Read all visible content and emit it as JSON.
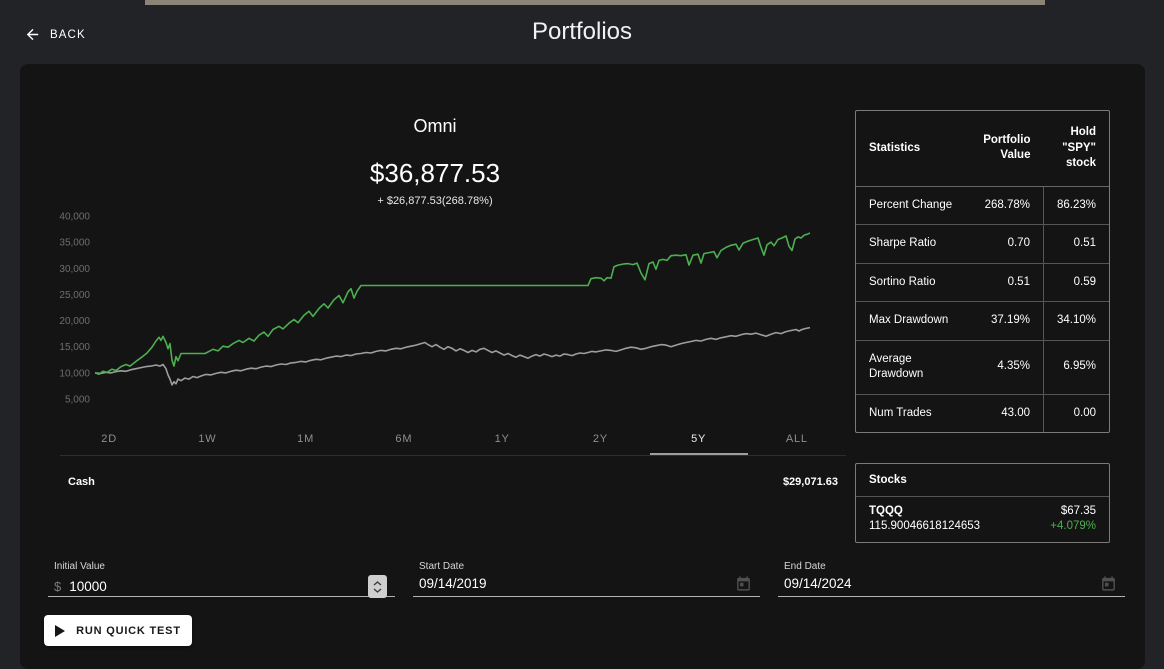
{
  "header": {
    "back_label": "BACK",
    "title": "Portfolios"
  },
  "portfolio": {
    "name": "Omni",
    "value": "$36,877.53",
    "change": "+ $26,877.53(268.78%)"
  },
  "chart_data": {
    "type": "line",
    "title": "Omni portfolio value vs holding SPY, 5Y backtest",
    "xlabel": "",
    "ylabel": "",
    "x_unit": "screen px across 5Y range (95 = Sep 2019, 810 = Sep 2024)",
    "ylim": [
      3000,
      42000
    ],
    "yticks": [
      40000,
      35000,
      30000,
      25000,
      20000,
      15000,
      10000,
      5000
    ],
    "ytick_labels": [
      "40,000",
      "35,000",
      "30,000",
      "25,000",
      "20,000",
      "15,000",
      "10,000",
      "5,000"
    ],
    "grid": false,
    "legend": "none",
    "series": [
      {
        "name": "Hold \"SPY\" stock",
        "color": "#9e9e9e",
        "points": [
          [
            95,
            10000
          ],
          [
            101,
            9900
          ],
          [
            106,
            10100
          ],
          [
            111,
            10000
          ],
          [
            116,
            10250
          ],
          [
            121,
            10400
          ],
          [
            126,
            10300
          ],
          [
            131,
            10600
          ],
          [
            136,
            10800
          ],
          [
            141,
            11000
          ],
          [
            146,
            11200
          ],
          [
            151,
            11300
          ],
          [
            156,
            11500
          ],
          [
            160,
            11300
          ],
          [
            163,
            11600
          ],
          [
            166,
            10800
          ],
          [
            168,
            9600
          ],
          [
            170,
            8800
          ],
          [
            172,
            7700
          ],
          [
            174,
            8300
          ],
          [
            176,
            7900
          ],
          [
            178,
            8800
          ],
          [
            181,
            8500
          ],
          [
            185,
            9000
          ],
          [
            189,
            8800
          ],
          [
            193,
            9300
          ],
          [
            197,
            9100
          ],
          [
            201,
            9400
          ],
          [
            206,
            9700
          ],
          [
            211,
            9600
          ],
          [
            216,
            9900
          ],
          [
            221,
            10100
          ],
          [
            226,
            10000
          ],
          [
            231,
            10300
          ],
          [
            236,
            10500
          ],
          [
            241,
            10400
          ],
          [
            246,
            10700
          ],
          [
            251,
            10900
          ],
          [
            256,
            10800
          ],
          [
            261,
            11100
          ],
          [
            266,
            11300
          ],
          [
            271,
            11200
          ],
          [
            276,
            11500
          ],
          [
            281,
            11700
          ],
          [
            286,
            11600
          ],
          [
            291,
            11900
          ],
          [
            296,
            12000
          ],
          [
            301,
            12200
          ],
          [
            306,
            12100
          ],
          [
            311,
            12400
          ],
          [
            316,
            12600
          ],
          [
            321,
            12500
          ],
          [
            326,
            12800
          ],
          [
            331,
            13000
          ],
          [
            336,
            13200
          ],
          [
            341,
            13100
          ],
          [
            346,
            13400
          ],
          [
            351,
            13300
          ],
          [
            356,
            13600
          ],
          [
            361,
            13700
          ],
          [
            366,
            13900
          ],
          [
            371,
            13800
          ],
          [
            376,
            14100
          ],
          [
            381,
            14300
          ],
          [
            386,
            14200
          ],
          [
            391,
            14500
          ],
          [
            396,
            14700
          ],
          [
            401,
            14600
          ],
          [
            406,
            14900
          ],
          [
            411,
            15100
          ],
          [
            416,
            15300
          ],
          [
            421,
            15600
          ],
          [
            425,
            15800
          ],
          [
            428,
            15400
          ],
          [
            432,
            15000
          ],
          [
            436,
            15400
          ],
          [
            440,
            14900
          ],
          [
            444,
            14500
          ],
          [
            448,
            15000
          ],
          [
            452,
            14700
          ],
          [
            456,
            14200
          ],
          [
            460,
            14600
          ],
          [
            464,
            14300
          ],
          [
            468,
            13900
          ],
          [
            472,
            14300
          ],
          [
            476,
            14000
          ],
          [
            480,
            14500
          ],
          [
            484,
            14700
          ],
          [
            488,
            14300
          ],
          [
            492,
            13900
          ],
          [
            496,
            14200
          ],
          [
            500,
            13800
          ],
          [
            504,
            13400
          ],
          [
            508,
            13700
          ],
          [
            512,
            13300
          ],
          [
            516,
            13000
          ],
          [
            520,
            13400
          ],
          [
            524,
            13100
          ],
          [
            528,
            12800
          ],
          [
            532,
            13200
          ],
          [
            536,
            13500
          ],
          [
            540,
            13200
          ],
          [
            544,
            13600
          ],
          [
            548,
            13400
          ],
          [
            552,
            13100
          ],
          [
            556,
            13400
          ],
          [
            560,
            13200
          ],
          [
            564,
            13600
          ],
          [
            568,
            13500
          ],
          [
            572,
            13300
          ],
          [
            576,
            13600
          ],
          [
            580,
            13800
          ],
          [
            584,
            13700
          ],
          [
            588,
            13900
          ],
          [
            592,
            14100
          ],
          [
            596,
            14000
          ],
          [
            601,
            14200
          ],
          [
            606,
            14400
          ],
          [
            611,
            14300
          ],
          [
            616,
            14100
          ],
          [
            621,
            14400
          ],
          [
            626,
            14700
          ],
          [
            631,
            14900
          ],
          [
            636,
            14800
          ],
          [
            641,
            14500
          ],
          [
            646,
            14700
          ],
          [
            651,
            15000
          ],
          [
            656,
            15200
          ],
          [
            661,
            15400
          ],
          [
            666,
            15300
          ],
          [
            671,
            15000
          ],
          [
            676,
            15300
          ],
          [
            681,
            15600
          ],
          [
            686,
            15800
          ],
          [
            691,
            16000
          ],
          [
            696,
            16200
          ],
          [
            701,
            16100
          ],
          [
            706,
            16400
          ],
          [
            711,
            16600
          ],
          [
            716,
            16400
          ],
          [
            721,
            16700
          ],
          [
            726,
            16900
          ],
          [
            731,
            17100
          ],
          [
            736,
            17000
          ],
          [
            741,
            17300
          ],
          [
            746,
            17500
          ],
          [
            751,
            17400
          ],
          [
            756,
            17600
          ],
          [
            761,
            17300
          ],
          [
            766,
            17000
          ],
          [
            771,
            17400
          ],
          [
            776,
            17700
          ],
          [
            781,
            17500
          ],
          [
            786,
            17900
          ],
          [
            791,
            18100
          ],
          [
            796,
            18300
          ],
          [
            799,
            18000
          ],
          [
            802,
            18300
          ],
          [
            806,
            18500
          ],
          [
            810,
            18650
          ]
        ]
      },
      {
        "name": "Portfolio Value",
        "color": "#4caf50",
        "points": [
          [
            95,
            10000
          ],
          [
            99,
            9750
          ],
          [
            103,
            10300
          ],
          [
            107,
            10100
          ],
          [
            112,
            10700
          ],
          [
            116,
            10450
          ],
          [
            121,
            11200
          ],
          [
            126,
            11600
          ],
          [
            130,
            11300
          ],
          [
            136,
            12200
          ],
          [
            141,
            12900
          ],
          [
            147,
            13800
          ],
          [
            152,
            14900
          ],
          [
            156,
            16100
          ],
          [
            159,
            16800
          ],
          [
            161,
            16200
          ],
          [
            163,
            17000
          ],
          [
            166,
            15800
          ],
          [
            168,
            14600
          ],
          [
            170,
            15600
          ],
          [
            172,
            12400
          ],
          [
            174,
            11300
          ],
          [
            176,
            13100
          ],
          [
            178,
            12300
          ],
          [
            181,
            13700
          ],
          [
            205,
            13700
          ],
          [
            209,
            14100
          ],
          [
            213,
            14500
          ],
          [
            218,
            14200
          ],
          [
            223,
            15100
          ],
          [
            228,
            14900
          ],
          [
            233,
            15600
          ],
          [
            239,
            16200
          ],
          [
            243,
            15800
          ],
          [
            249,
            16600
          ],
          [
            254,
            16100
          ],
          [
            259,
            17200
          ],
          [
            264,
            17800
          ],
          [
            268,
            17000
          ],
          [
            273,
            18300
          ],
          [
            279,
            18900
          ],
          [
            283,
            18400
          ],
          [
            289,
            19500
          ],
          [
            294,
            20200
          ],
          [
            298,
            19600
          ],
          [
            304,
            21000
          ],
          [
            309,
            21800
          ],
          [
            313,
            20800
          ],
          [
            319,
            22300
          ],
          [
            324,
            23200
          ],
          [
            328,
            22400
          ],
          [
            334,
            24000
          ],
          [
            339,
            24800
          ],
          [
            343,
            23400
          ],
          [
            348,
            25500
          ],
          [
            351,
            26100
          ],
          [
            354,
            24300
          ],
          [
            357,
            25600
          ],
          [
            361,
            26700
          ],
          [
            588,
            26700
          ],
          [
            591,
            28000
          ],
          [
            596,
            28200
          ],
          [
            601,
            28100
          ],
          [
            604,
            27600
          ],
          [
            607,
            28200
          ],
          [
            611,
            28100
          ],
          [
            614,
            30300
          ],
          [
            618,
            30600
          ],
          [
            623,
            30800
          ],
          [
            628,
            30900
          ],
          [
            633,
            30700
          ],
          [
            637,
            31000
          ],
          [
            641,
            29100
          ],
          [
            645,
            27800
          ],
          [
            649,
            30900
          ],
          [
            653,
            31200
          ],
          [
            656,
            29800
          ],
          [
            659,
            31500
          ],
          [
            663,
            31700
          ],
          [
            667,
            31500
          ],
          [
            671,
            32400
          ],
          [
            676,
            32500
          ],
          [
            681,
            32400
          ],
          [
            686,
            32600
          ],
          [
            689,
            30600
          ],
          [
            693,
            32500
          ],
          [
            698,
            32700
          ],
          [
            701,
            31000
          ],
          [
            704,
            32800
          ],
          [
            709,
            33000
          ],
          [
            714,
            33200
          ],
          [
            717,
            32000
          ],
          [
            721,
            33400
          ],
          [
            726,
            34000
          ],
          [
            731,
            34400
          ],
          [
            736,
            34600
          ],
          [
            739,
            33500
          ],
          [
            743,
            34800
          ],
          [
            748,
            35200
          ],
          [
            753,
            35500
          ],
          [
            758,
            35800
          ],
          [
            761,
            34000
          ],
          [
            764,
            32500
          ],
          [
            767,
            34500
          ],
          [
            771,
            35000
          ],
          [
            774,
            34300
          ],
          [
            778,
            35500
          ],
          [
            782,
            35800
          ],
          [
            786,
            36200
          ],
          [
            789,
            34200
          ],
          [
            792,
            33400
          ],
          [
            795,
            35600
          ],
          [
            798,
            36000
          ],
          [
            801,
            35800
          ],
          [
            804,
            36300
          ],
          [
            807,
            36500
          ],
          [
            810,
            36750
          ]
        ]
      }
    ]
  },
  "ranges": {
    "tabs": [
      "2D",
      "1W",
      "1M",
      "6M",
      "1Y",
      "2Y",
      "5Y",
      "ALL"
    ],
    "selected": "5Y"
  },
  "cash": {
    "label": "Cash",
    "value": "$29,071.63"
  },
  "statistics": {
    "headers": [
      "Statistics",
      "Portfolio Value",
      "Hold \"SPY\" stock"
    ],
    "rows": [
      {
        "label": "Percent Change",
        "portfolio": "268.78%",
        "spy": "86.23%"
      },
      {
        "label": "Sharpe Ratio",
        "portfolio": "0.70",
        "spy": "0.51"
      },
      {
        "label": "Sortino Ratio",
        "portfolio": "0.51",
        "spy": "0.59"
      },
      {
        "label": "Max Drawdown",
        "portfolio": "37.19%",
        "spy": "34.10%"
      },
      {
        "label": "Average Drawdown",
        "portfolio": "4.35%",
        "spy": "6.95%"
      },
      {
        "label": "Num Trades",
        "portfolio": "43.00",
        "spy": "0.00"
      }
    ]
  },
  "stocks": {
    "title": "Stocks",
    "items": [
      {
        "symbol": "TQQQ",
        "shares": "115.90046618124653",
        "price": "$67.35",
        "change": "+4.079%"
      }
    ]
  },
  "form": {
    "initial_value": {
      "label": "Initial Value",
      "prefix": "$",
      "value": "10000"
    },
    "start_date": {
      "label": "Start Date",
      "value": "09/14/2019"
    },
    "end_date": {
      "label": "End Date",
      "value": "09/14/2024"
    }
  },
  "actions": {
    "run_label": "RUN QUICK TEST"
  },
  "icons": {
    "back": "arrow-left",
    "stepper": "up-down-chevrons",
    "date": "calendar",
    "run": "play-triangle"
  },
  "colors": {
    "page_bg": "#222326",
    "card_bg": "#141414",
    "positive_green": "#4caf50",
    "spy_line_gray": "#9e9e9e",
    "selected_tab_underline": "#9e9e9e"
  }
}
